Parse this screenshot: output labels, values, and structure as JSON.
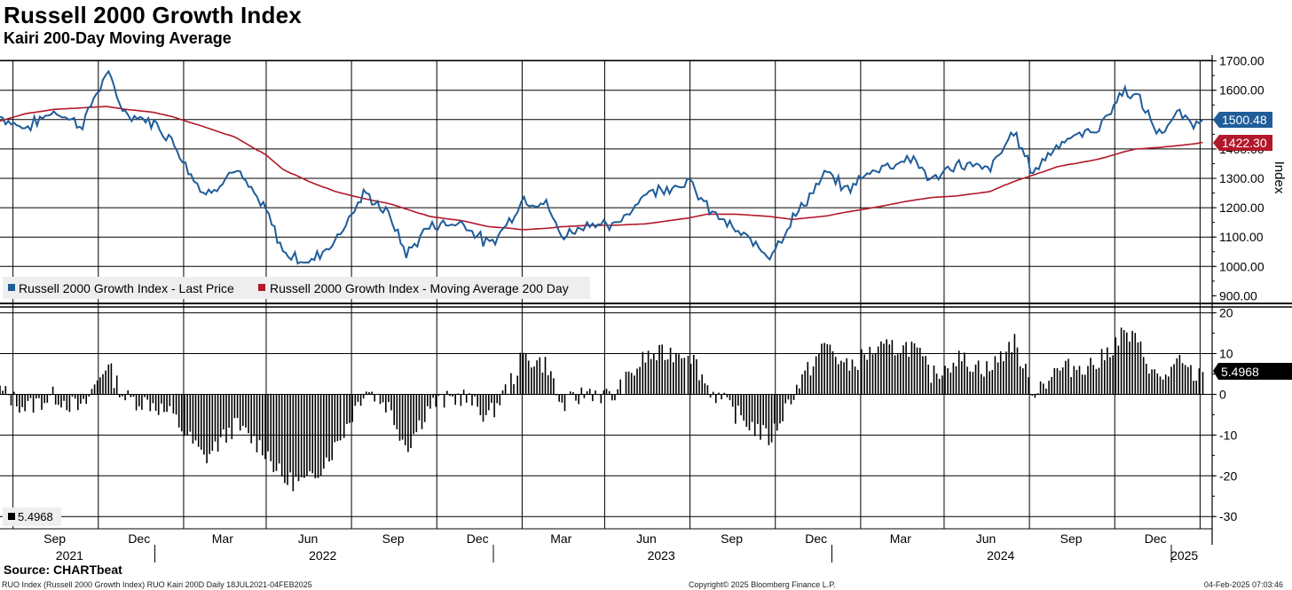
{
  "header": {
    "title": "Russell 2000 Growth Index",
    "subtitle": "Kairi 200-Day Moving Average"
  },
  "footer": {
    "source": "Source: CHARTbeat",
    "left_note": "RUO Index (Russell 2000 Growth Index) RUO Kairi 200D  Daily 18JUL2021-04FEB2025",
    "center_note": "Copyright© 2025 Bloomberg Finance L.P.",
    "right_note": "04-Feb-2025 07:03:46"
  },
  "colors": {
    "price": "#1f5c99",
    "ma": "#b2182b",
    "kairi": "#000000",
    "grid": "#000000"
  },
  "chart_data": [
    {
      "type": "line",
      "title": "Russell 2000 Growth Index",
      "ylabel": "Index",
      "ylim": [
        880,
        1720
      ],
      "yticks": [
        "1700.00",
        "1600.00",
        "1500.00",
        "1400.00",
        "1300.00",
        "1200.00",
        "1100.00",
        "1000.00",
        "900.00"
      ],
      "x_dates": [
        "2021-07-18",
        "2021-08-15",
        "2021-09-15",
        "2021-10-15",
        "2021-11-10",
        "2021-12-01",
        "2021-12-31",
        "2022-01-20",
        "2022-02-24",
        "2022-03-29",
        "2022-05-01",
        "2022-05-20",
        "2022-06-16",
        "2022-07-15",
        "2022-08-16",
        "2022-09-10",
        "2022-09-30",
        "2022-10-25",
        "2022-11-30",
        "2022-12-28",
        "2023-01-20",
        "2023-02-02",
        "2023-03-01",
        "2023-03-15",
        "2023-04-15",
        "2023-05-10",
        "2023-06-15",
        "2023-07-31",
        "2023-08-20",
        "2023-09-20",
        "2023-10-27",
        "2023-11-20",
        "2023-12-27",
        "2024-01-17",
        "2024-02-15",
        "2024-03-28",
        "2024-04-19",
        "2024-05-15",
        "2024-06-20",
        "2024-07-16",
        "2024-08-05",
        "2024-09-01",
        "2024-10-15",
        "2024-11-11",
        "2024-11-25",
        "2024-12-19",
        "2025-01-10",
        "2025-01-28",
        "2025-02-04"
      ],
      "series": [
        {
          "name": "Russell 2000 Growth Index - Last Price",
          "last_label": "1500.48",
          "values": [
            1510,
            1470,
            1530,
            1480,
            1660,
            1520,
            1490,
            1430,
            1240,
            1330,
            1190,
            1050,
            1010,
            1090,
            1250,
            1180,
            1040,
            1140,
            1150,
            1070,
            1160,
            1230,
            1210,
            1100,
            1150,
            1130,
            1250,
            1290,
            1200,
            1120,
            1040,
            1160,
            1320,
            1260,
            1330,
            1370,
            1290,
            1350,
            1330,
            1460,
            1320,
            1420,
            1470,
            1600,
            1580,
            1450,
            1520,
            1480,
            1500.48
          ]
        },
        {
          "name": "Russell 2000 Growth Index - Moving Average 200 Day",
          "last_label": "1422.30",
          "values": [
            1495,
            1520,
            1535,
            1540,
            1545,
            1535,
            1525,
            1510,
            1475,
            1440,
            1380,
            1330,
            1290,
            1255,
            1230,
            1215,
            1195,
            1170,
            1155,
            1135,
            1130,
            1125,
            1130,
            1135,
            1140,
            1140,
            1145,
            1165,
            1178,
            1178,
            1170,
            1160,
            1172,
            1185,
            1200,
            1225,
            1235,
            1240,
            1255,
            1290,
            1310,
            1340,
            1365,
            1390,
            1400,
            1405,
            1412,
            1418,
            1422.3
          ]
        }
      ]
    },
    {
      "type": "bar",
      "title": "RUO Kairi 200D",
      "ylim": [
        -33,
        21
      ],
      "yticks": [
        "20",
        "10",
        "0",
        "-10",
        "-20",
        "-30"
      ],
      "last_label": "5.4968",
      "legend_entry": "5.4968",
      "x_dates": [
        "2021-07-18",
        "2021-08-15",
        "2021-09-15",
        "2021-10-15",
        "2021-11-10",
        "2021-12-01",
        "2021-12-31",
        "2022-01-20",
        "2022-02-24",
        "2022-03-29",
        "2022-05-01",
        "2022-05-20",
        "2022-06-16",
        "2022-07-15",
        "2022-08-16",
        "2022-09-10",
        "2022-09-30",
        "2022-10-25",
        "2022-11-30",
        "2022-12-28",
        "2023-01-20",
        "2023-02-02",
        "2023-03-01",
        "2023-03-15",
        "2023-04-15",
        "2023-05-10",
        "2023-06-15",
        "2023-07-31",
        "2023-08-20",
        "2023-09-20",
        "2023-10-27",
        "2023-11-20",
        "2023-12-27",
        "2024-01-17",
        "2024-02-15",
        "2024-03-28",
        "2024-04-19",
        "2024-05-15",
        "2024-06-20",
        "2024-07-16",
        "2024-08-05",
        "2024-09-01",
        "2024-10-15",
        "2024-11-11",
        "2024-11-25",
        "2024-12-19",
        "2025-01-10",
        "2025-01-28",
        "2025-02-04"
      ],
      "values": [
        1.0,
        -3.3,
        -0.3,
        -3.9,
        7.5,
        -1.0,
        -2.3,
        -5.3,
        -15.9,
        -7.6,
        -13.8,
        -21.1,
        -21.7,
        -13.1,
        1.6,
        -2.9,
        -13.0,
        -2.6,
        -0.4,
        -5.6,
        2.7,
        9.3,
        7.1,
        -3.1,
        0.9,
        -0.9,
        9.2,
        10.7,
        1.9,
        -4.9,
        -11.1,
        0.0,
        12.6,
        6.4,
        10.8,
        11.8,
        4.5,
        8.9,
        6.0,
        13.2,
        0.8,
        6.0,
        7.7,
        15.1,
        12.9,
        3.2,
        7.6,
        4.4,
        5.4968
      ]
    }
  ],
  "legend": {
    "price": "Russell 2000 Growth Index - Last Price",
    "ma": "Russell 2000 Growth Index - Moving Average 200 Day"
  },
  "x_axis": {
    "month_ticks": [
      {
        "label": "Sep",
        "date": "2021-09-15"
      },
      {
        "label": "Dec",
        "date": "2021-12-15"
      },
      {
        "label": "Mar",
        "date": "2022-03-15"
      },
      {
        "label": "Jun",
        "date": "2022-06-15"
      },
      {
        "label": "Sep",
        "date": "2022-09-15"
      },
      {
        "label": "Dec",
        "date": "2022-12-15"
      },
      {
        "label": "Mar",
        "date": "2023-03-15"
      },
      {
        "label": "Jun",
        "date": "2023-06-15"
      },
      {
        "label": "Sep",
        "date": "2023-09-15"
      },
      {
        "label": "Dec",
        "date": "2023-12-15"
      },
      {
        "label": "Mar",
        "date": "2024-03-15"
      },
      {
        "label": "Jun",
        "date": "2024-06-15"
      },
      {
        "label": "Sep",
        "date": "2024-09-15"
      },
      {
        "label": "Dec",
        "date": "2024-12-15"
      }
    ],
    "gridline_dates": [
      "2021-08-01",
      "2021-11-01",
      "2022-02-01",
      "2022-05-01",
      "2022-08-01",
      "2022-11-01",
      "2023-02-01",
      "2023-05-01",
      "2023-08-01",
      "2023-11-01",
      "2024-02-01",
      "2024-05-01",
      "2024-08-01",
      "2024-11-01",
      "2025-02-01"
    ],
    "year_labels": [
      {
        "label": "2021",
        "date": "2021-10-01"
      },
      {
        "label": "2022",
        "date": "2022-07-01"
      },
      {
        "label": "2023",
        "date": "2023-07-01"
      },
      {
        "label": "2024",
        "date": "2024-07-01"
      },
      {
        "label": "2025",
        "date": "2025-01-15"
      }
    ],
    "year_dividers": [
      "2022-01-01",
      "2023-01-01",
      "2024-01-01",
      "2025-01-01"
    ],
    "range": [
      "2021-07-18",
      "2025-02-14"
    ]
  }
}
